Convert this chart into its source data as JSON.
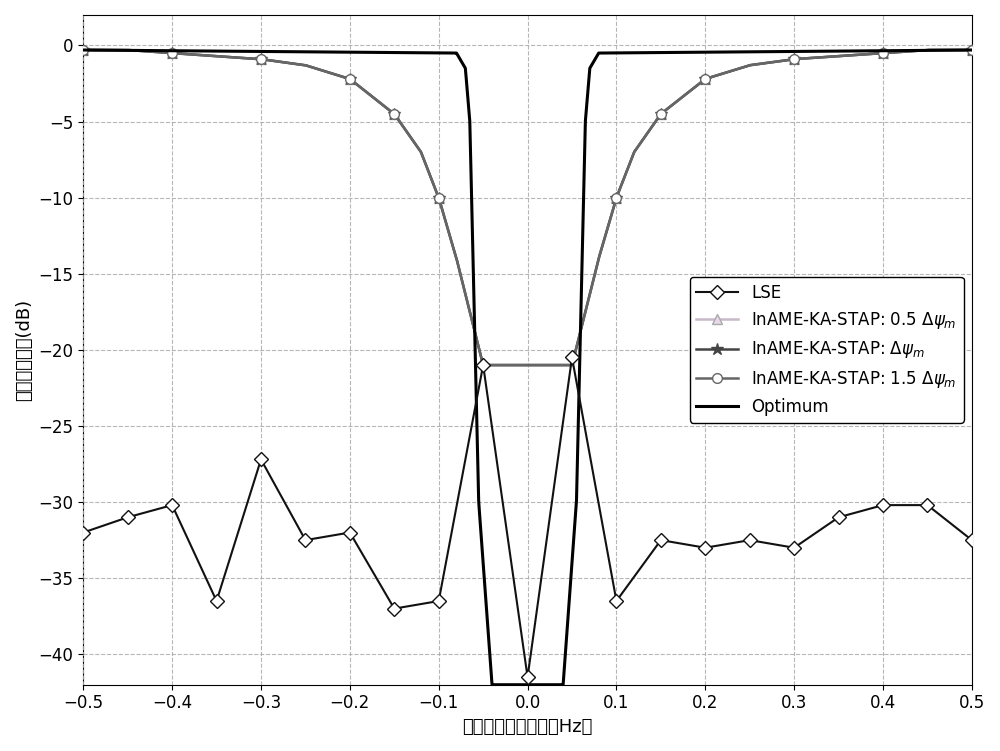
{
  "xlim": [
    -0.5,
    0.5
  ],
  "ylim": [
    -42,
    2
  ],
  "xlabel": "归一化多普勒频率（Hz）",
  "ylabel": "信干噪比损失(dB)",
  "xticks": [
    -0.5,
    -0.4,
    -0.3,
    -0.2,
    -0.1,
    0.0,
    0.1,
    0.2,
    0.3,
    0.4,
    0.5
  ],
  "yticks": [
    0,
    -5,
    -10,
    -15,
    -20,
    -25,
    -30,
    -35,
    -40
  ],
  "grid_color": "#aaaaaa",
  "background_color": "#ffffff",
  "legend_labels": [
    "LSE",
    "InAME-KA-STAP: 0.5 $\\Delta\\psi_m$",
    "InAME-KA-STAP: $\\Delta\\psi_m$",
    "InAME-KA-STAP: 1.5 $\\Delta\\psi_m$",
    "Optimum"
  ],
  "lse_x": [
    -0.5,
    -0.45,
    -0.4,
    -0.35,
    -0.3,
    -0.25,
    -0.2,
    -0.15,
    -0.1,
    -0.05,
    0.0,
    0.05,
    0.1,
    0.15,
    0.2,
    0.25,
    0.3,
    0.35,
    0.4,
    0.45,
    0.5
  ],
  "lse_y": [
    -32.0,
    -31.0,
    -30.2,
    -36.5,
    -27.2,
    -32.5,
    -32.0,
    -37.0,
    -36.5,
    -21.0,
    -41.5,
    -20.5,
    -36.5,
    -32.5,
    -33.0,
    -32.5,
    -33.0,
    -31.0,
    -30.2,
    -30.2,
    -32.5
  ],
  "iname_marker_x": [
    -0.5,
    -0.4,
    -0.3,
    -0.2,
    -0.15,
    -0.1,
    0.1,
    0.15,
    0.2,
    0.3,
    0.4,
    0.5
  ],
  "iname_notch_depth": -21.0,
  "iname_transition_pts": [
    [
      0.0,
      -21.0
    ],
    [
      0.05,
      -21.0
    ],
    [
      0.08,
      -14.0
    ],
    [
      0.1,
      -10.0
    ],
    [
      0.12,
      -7.0
    ],
    [
      0.15,
      -4.5
    ],
    [
      0.2,
      -2.2
    ],
    [
      0.25,
      -1.3
    ],
    [
      0.3,
      -0.9
    ],
    [
      0.35,
      -0.7
    ],
    [
      0.4,
      -0.5
    ],
    [
      0.45,
      -0.3
    ],
    [
      0.5,
      -0.3
    ]
  ],
  "optimum_transition_pts": [
    [
      0.0,
      -42.0
    ],
    [
      0.02,
      -42.0
    ],
    [
      0.04,
      -42.0
    ],
    [
      0.055,
      -30.0
    ],
    [
      0.065,
      -5.0
    ],
    [
      0.07,
      -1.5
    ],
    [
      0.08,
      -0.5
    ],
    [
      0.5,
      -0.3
    ]
  ]
}
